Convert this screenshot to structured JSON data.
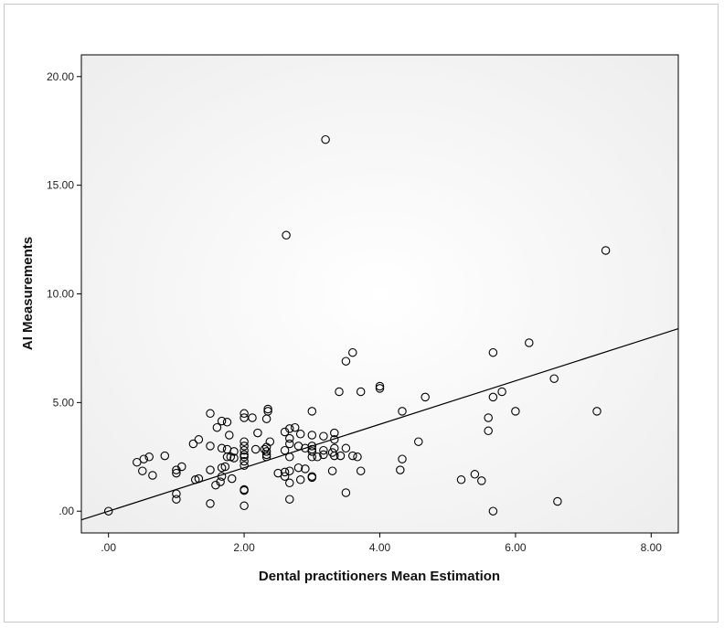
{
  "chart_data": {
    "type": "scatter",
    "xlabel": "Dental practitioners Mean Estimation",
    "ylabel": "AI Measurements",
    "xlim": [
      -0.4,
      8.4
    ],
    "ylim": [
      -1.0,
      21.0
    ],
    "x_ticks": [
      ".00",
      "2.00",
      "4.00",
      "6.00",
      "8.00"
    ],
    "x_tick_values": [
      0,
      2,
      4,
      6,
      8
    ],
    "y_ticks": [
      ".00",
      "5.00",
      "10.00",
      "15.00",
      "20.00"
    ],
    "y_tick_values": [
      0,
      5,
      10,
      15,
      20
    ],
    "reference_line": "y = x",
    "grid": false,
    "colors": {
      "plot_background": "#f3f3f3",
      "marker_stroke": "#000000",
      "line": "#000000"
    },
    "series": [
      {
        "points": [
          [
            0.0,
            0.0
          ],
          [
            0.42,
            2.25
          ],
          [
            0.5,
            1.85
          ],
          [
            0.52,
            2.4
          ],
          [
            0.6,
            2.5
          ],
          [
            0.65,
            1.65
          ],
          [
            0.83,
            2.55
          ],
          [
            1.0,
            0.55
          ],
          [
            1.0,
            0.8
          ],
          [
            1.0,
            1.75
          ],
          [
            1.0,
            1.9
          ],
          [
            1.08,
            2.05
          ],
          [
            1.25,
            3.1
          ],
          [
            1.28,
            1.45
          ],
          [
            1.33,
            1.5
          ],
          [
            1.33,
            3.3
          ],
          [
            1.5,
            0.35
          ],
          [
            1.5,
            1.9
          ],
          [
            1.5,
            3.0
          ],
          [
            1.5,
            4.5
          ],
          [
            1.58,
            1.2
          ],
          [
            1.6,
            3.85
          ],
          [
            1.65,
            1.35
          ],
          [
            1.67,
            1.6
          ],
          [
            1.67,
            2.0
          ],
          [
            1.67,
            2.9
          ],
          [
            1.67,
            4.15
          ],
          [
            1.72,
            2.05
          ],
          [
            1.75,
            2.5
          ],
          [
            1.75,
            2.85
          ],
          [
            1.75,
            4.1
          ],
          [
            1.78,
            3.5
          ],
          [
            1.8,
            2.5
          ],
          [
            1.82,
            1.5
          ],
          [
            1.85,
            2.45
          ],
          [
            1.85,
            2.75
          ],
          [
            2.0,
            0.25
          ],
          [
            2.0,
            0.95
          ],
          [
            2.0,
            1.0
          ],
          [
            2.0,
            2.1
          ],
          [
            2.0,
            2.3
          ],
          [
            2.0,
            2.5
          ],
          [
            2.0,
            2.6
          ],
          [
            2.0,
            2.8
          ],
          [
            2.0,
            3.0
          ],
          [
            2.0,
            3.2
          ],
          [
            2.0,
            4.3
          ],
          [
            2.0,
            4.5
          ],
          [
            2.12,
            4.3
          ],
          [
            2.17,
            2.85
          ],
          [
            2.2,
            3.6
          ],
          [
            2.3,
            2.85
          ],
          [
            2.33,
            2.5
          ],
          [
            2.33,
            2.6
          ],
          [
            2.33,
            2.75
          ],
          [
            2.33,
            2.95
          ],
          [
            2.33,
            4.25
          ],
          [
            2.35,
            4.6
          ],
          [
            2.35,
            4.7
          ],
          [
            2.38,
            3.2
          ],
          [
            2.5,
            1.75
          ],
          [
            2.6,
            1.6
          ],
          [
            2.6,
            1.8
          ],
          [
            2.6,
            2.8
          ],
          [
            2.6,
            3.65
          ],
          [
            2.62,
            12.7
          ],
          [
            2.67,
            0.55
          ],
          [
            2.67,
            1.3
          ],
          [
            2.67,
            1.85
          ],
          [
            2.67,
            2.5
          ],
          [
            2.67,
            3.1
          ],
          [
            2.67,
            3.35
          ],
          [
            2.67,
            3.8
          ],
          [
            2.75,
            3.85
          ],
          [
            2.8,
            2.0
          ],
          [
            2.8,
            3.0
          ],
          [
            2.83,
            1.45
          ],
          [
            2.83,
            3.55
          ],
          [
            2.9,
            2.9
          ],
          [
            2.9,
            1.95
          ],
          [
            3.0,
            1.55
          ],
          [
            3.0,
            1.6
          ],
          [
            3.0,
            2.5
          ],
          [
            3.0,
            2.75
          ],
          [
            3.0,
            2.85
          ],
          [
            3.0,
            3.0
          ],
          [
            3.0,
            3.5
          ],
          [
            3.0,
            4.6
          ],
          [
            3.08,
            2.5
          ],
          [
            3.17,
            2.6
          ],
          [
            3.17,
            2.8
          ],
          [
            3.17,
            3.45
          ],
          [
            3.2,
            17.1
          ],
          [
            3.3,
            1.85
          ],
          [
            3.3,
            2.7
          ],
          [
            3.33,
            2.55
          ],
          [
            3.33,
            2.9
          ],
          [
            3.33,
            3.3
          ],
          [
            3.33,
            3.6
          ],
          [
            3.4,
            5.5
          ],
          [
            3.42,
            2.55
          ],
          [
            3.5,
            0.85
          ],
          [
            3.5,
            2.9
          ],
          [
            3.5,
            6.9
          ],
          [
            3.6,
            7.3
          ],
          [
            3.6,
            2.55
          ],
          [
            3.67,
            2.5
          ],
          [
            3.72,
            5.5
          ],
          [
            3.72,
            1.85
          ],
          [
            4.0,
            5.65
          ],
          [
            4.0,
            5.75
          ],
          [
            4.3,
            1.9
          ],
          [
            4.33,
            2.4
          ],
          [
            4.33,
            4.6
          ],
          [
            4.57,
            3.2
          ],
          [
            4.67,
            5.25
          ],
          [
            5.2,
            1.45
          ],
          [
            5.4,
            1.7
          ],
          [
            5.5,
            1.4
          ],
          [
            5.6,
            3.7
          ],
          [
            5.6,
            4.3
          ],
          [
            5.67,
            0.0
          ],
          [
            5.67,
            5.25
          ],
          [
            5.67,
            7.3
          ],
          [
            5.8,
            5.5
          ],
          [
            6.0,
            4.6
          ],
          [
            6.2,
            7.75
          ],
          [
            6.57,
            6.1
          ],
          [
            6.62,
            0.45
          ],
          [
            7.2,
            4.6
          ],
          [
            7.33,
            12.0
          ]
        ]
      }
    ]
  }
}
